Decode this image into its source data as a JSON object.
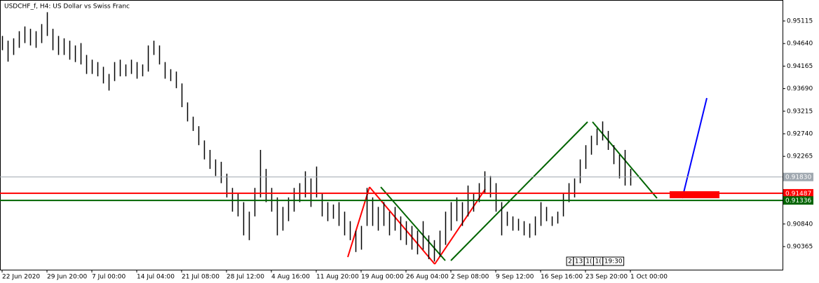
{
  "chart_data": {
    "type": "hlbar",
    "title": "USDCHF_f, H4:  US Dollar vs Swiss Franc",
    "color": "#000000",
    "xlim": [
      -0.375,
      139.125
    ],
    "xticks": [
      {
        "value": 0,
        "label": "22 Jun 2020"
      },
      {
        "value": 8,
        "label": "29 Jun 20:00"
      },
      {
        "value": 16,
        "label": "7 Jul 00:00"
      },
      {
        "value": 24,
        "label": "14 Jul 04:00"
      },
      {
        "value": 32,
        "label": "21 Jul 08:00"
      },
      {
        "value": 40,
        "label": "28 Jul 12:00"
      },
      {
        "value": 48,
        "label": "4 Aug 16:00"
      },
      {
        "value": 56,
        "label": "11 Aug 20:00"
      },
      {
        "value": 64,
        "label": "19 Aug 00:00"
      },
      {
        "value": 72,
        "label": "26 Aug 04:00"
      },
      {
        "value": 80,
        "label": "2 Sep 08:00"
      },
      {
        "value": 88,
        "label": "9 Sep 12:00"
      },
      {
        "value": 96,
        "label": "16 Sep 16:00"
      },
      {
        "value": 104,
        "label": "23 Sep 20:00"
      },
      {
        "value": 112,
        "label": "1 Oct 00:00"
      }
    ],
    "ylim": [
      0.89878,
      0.95557
    ],
    "yticks": [
      0.95115,
      {
        "value": 0.9464,
        "label": "0.94640"
      },
      0.94165,
      {
        "value": 0.9369,
        "label": "0.93690"
      },
      0.93215,
      {
        "value": 0.9274,
        "label": "0.92740"
      },
      0.92265,
      {
        "value": 0.9084,
        "label": "0.90840"
      },
      0.90365
    ],
    "high": [
      0.948,
      0.947,
      0.9475,
      0.949,
      0.95,
      0.9495,
      0.949,
      0.9505,
      0.953,
      0.9495,
      0.948,
      0.9475,
      0.947,
      0.946,
      0.9465,
      0.944,
      0.943,
      0.9425,
      0.9415,
      0.94,
      0.9425,
      0.943,
      0.942,
      0.943,
      0.9425,
      0.942,
      0.946,
      0.947,
      0.946,
      0.9425,
      0.941,
      0.9405,
      0.938,
      0.934,
      0.931,
      0.929,
      0.926,
      0.924,
      0.922,
      0.9215,
      0.919,
      0.916,
      0.915,
      0.913,
      0.911,
      0.916,
      0.924,
      0.92,
      0.916,
      0.914,
      0.912,
      0.914,
      0.916,
      0.917,
      0.9195,
      0.918,
      0.9205,
      0.915,
      0.913,
      0.9125,
      0.913,
      0.911,
      0.909,
      0.907,
      0.908,
      0.916,
      0.914,
      0.912,
      0.913,
      0.911,
      0.912,
      0.91,
      0.909,
      0.908,
      0.907,
      0.909,
      0.906,
      0.905,
      0.907,
      0.911,
      0.913,
      0.914,
      0.913,
      0.9165,
      0.915,
      0.917,
      0.9195,
      0.9185,
      0.917,
      0.913,
      0.911,
      0.91,
      0.9095,
      0.909,
      0.9085,
      0.91,
      0.913,
      0.912,
      0.91,
      0.911,
      0.915,
      0.917,
      0.918,
      0.922,
      0.925,
      0.927,
      0.9285,
      0.93,
      0.928,
      0.925,
      0.923,
      0.924,
      0.92
    ],
    "low": [
      0.945,
      0.9426,
      0.944,
      0.9455,
      0.9465,
      0.946,
      0.9455,
      0.9465,
      0.948,
      0.945,
      0.944,
      0.944,
      0.943,
      0.9425,
      0.942,
      0.94,
      0.94,
      0.9395,
      0.938,
      0.9365,
      0.9385,
      0.9395,
      0.9395,
      0.94,
      0.939,
      0.9395,
      0.9405,
      0.944,
      0.942,
      0.939,
      0.9385,
      0.937,
      0.933,
      0.93,
      0.928,
      0.925,
      0.922,
      0.92,
      0.9185,
      0.917,
      0.914,
      0.911,
      0.91,
      0.906,
      0.905,
      0.91,
      0.914,
      0.913,
      0.911,
      0.906,
      0.907,
      0.909,
      0.911,
      0.913,
      0.914,
      0.912,
      0.914,
      0.91,
      0.909,
      0.9095,
      0.908,
      0.906,
      0.905,
      0.9025,
      0.903,
      0.908,
      0.908,
      0.907,
      0.908,
      0.906,
      0.907,
      0.905,
      0.904,
      0.903,
      0.902,
      0.903,
      0.901,
      0.9005,
      0.9015,
      0.904,
      0.907,
      0.909,
      0.908,
      0.91,
      0.911,
      0.913,
      0.915,
      0.914,
      0.911,
      0.906,
      0.908,
      0.907,
      0.907,
      0.906,
      0.9055,
      0.906,
      0.908,
      0.909,
      0.908,
      0.9085,
      0.91,
      0.913,
      0.914,
      0.917,
      0.92,
      0.923,
      0.925,
      0.926,
      0.924,
      0.921,
      0.918,
      0.9165,
      0.9165
    ],
    "hlines": [
      {
        "value": 0.9183,
        "label": "0.91830",
        "color": "#a0a8b0"
      },
      {
        "value": 0.91487,
        "label": "0.91487",
        "color": "#ff0000"
      },
      {
        "value": 0.91336,
        "label": "0.91336",
        "color": "#006400"
      }
    ],
    "cursor_labels": [
      "2",
      "13",
      "1(",
      "1(",
      "19:30"
    ]
  }
}
